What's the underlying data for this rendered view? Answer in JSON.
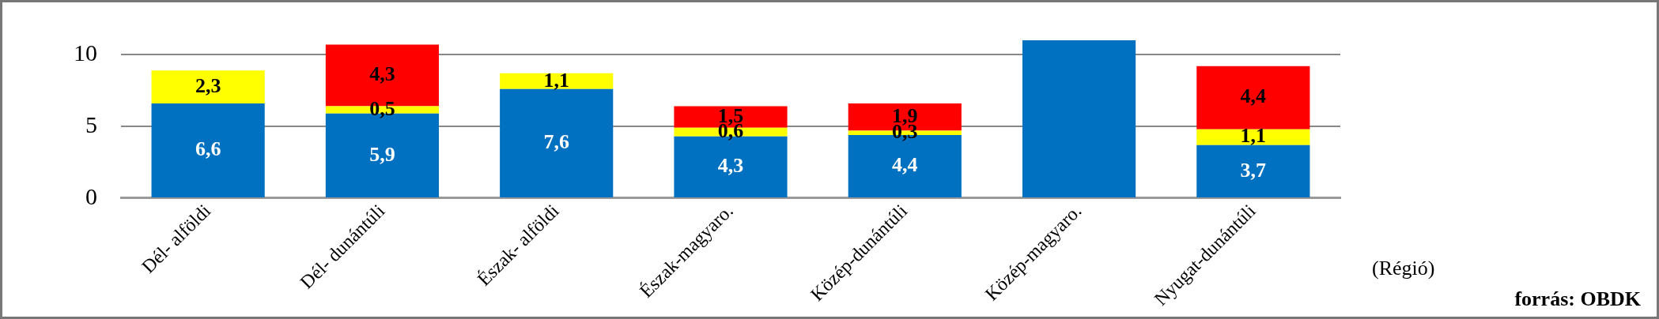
{
  "chart_data": {
    "type": "bar",
    "stacked": true,
    "xlabel": "(Régió)",
    "annotations": [
      "forrás: OBDK"
    ],
    "categories": [
      "Dél- alföldi",
      "Dél- dunántúli",
      "Észak- alföldi",
      "Észak-magyaro.",
      "Közép-dunántúli",
      "Közép-magyaro.",
      "Nyugat-dunántúli"
    ],
    "series": [
      {
        "color": "#0070c0",
        "values": [
          6.6,
          5.9,
          7.6,
          4.3,
          4.4,
          11,
          3.7
        ],
        "value_labels": [
          "6,6",
          "5,9",
          "7,6",
          "4,3",
          "4,4",
          null,
          "3,7"
        ]
      },
      {
        "color": "#ffff00",
        "values": [
          2.3,
          0.5,
          1.1,
          0.6,
          0.3,
          null,
          1.1
        ],
        "value_labels": [
          "2,3",
          "0,5",
          "1,1",
          "0,6",
          "0,3",
          null,
          "1,1"
        ]
      },
      {
        "color": "#ff0000",
        "values": [
          null,
          4.3,
          null,
          1.5,
          1.9,
          null,
          4.4
        ],
        "value_labels": [
          null,
          "4,3",
          null,
          "1,5",
          "1,9",
          null,
          "4,4"
        ]
      }
    ],
    "ylim": [
      0,
      11
    ],
    "yticks": [
      0,
      5,
      10
    ],
    "grid": "y",
    "legend": false
  }
}
